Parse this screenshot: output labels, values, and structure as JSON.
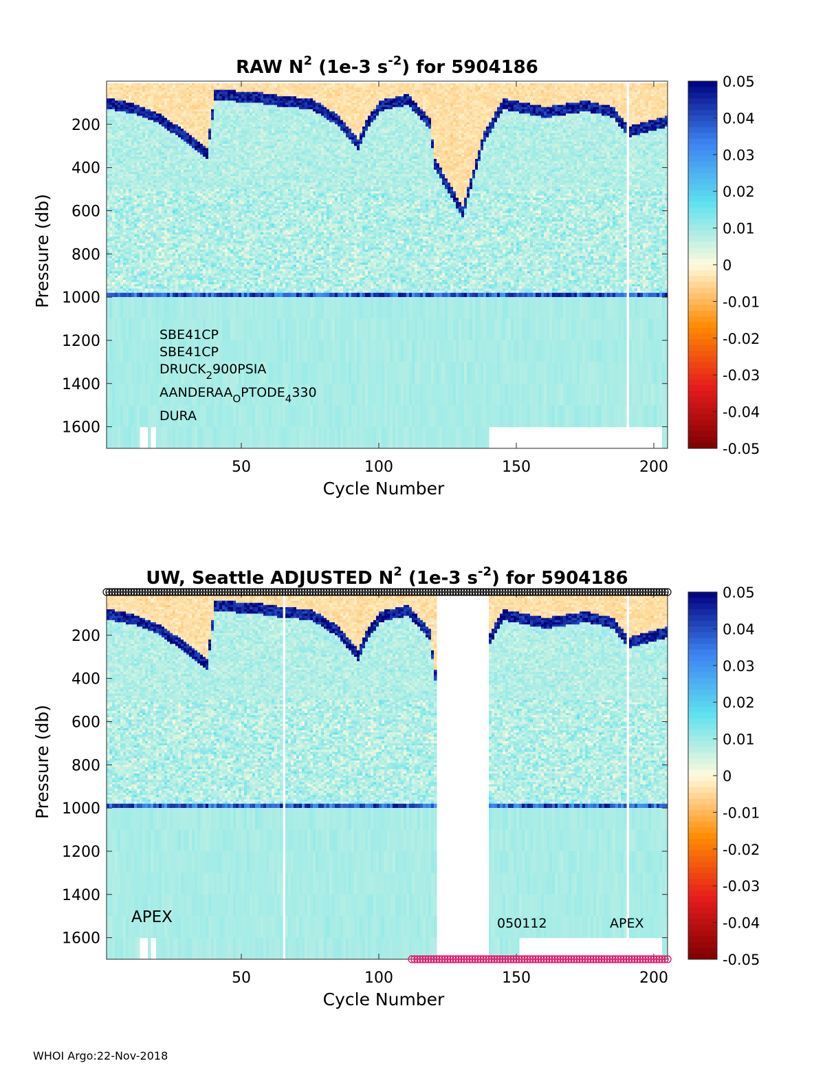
{
  "chart_data": [
    {
      "type": "heatmap",
      "title": {
        "main": "RAW N",
        "sup": "2",
        "mid": " (1e-3 s",
        "sup2": "-2",
        "tail": ") for 5904186"
      },
      "xlabel": "Cycle Number",
      "ylabel": "Pressure (db)",
      "xlim": [
        1,
        205
      ],
      "ylim": [
        1700,
        0
      ],
      "xticks": [
        50,
        100,
        150,
        200
      ],
      "yticks": [
        200,
        400,
        600,
        800,
        1000,
        1200,
        1400,
        1600
      ],
      "colorbar": {
        "min": -0.05,
        "max": 0.05,
        "ticks": [
          "0.05",
          "0.04",
          "0.03",
          "0.02",
          "0.01",
          "0",
          "-0.01",
          "-0.02",
          "-0.03",
          "-0.04",
          "-0.05"
        ]
      },
      "colormap": [
        "#7f0000",
        "#e61c1c",
        "#ff8c00",
        "#fffadc",
        "#5fe1ef",
        "#3c82f0",
        "#00007d"
      ],
      "mixed_layer_depth": [
        [
          1,
          100
        ],
        [
          10,
          120
        ],
        [
          20,
          170
        ],
        [
          30,
          260
        ],
        [
          37,
          330
        ],
        [
          40,
          60
        ],
        [
          55,
          70
        ],
        [
          65,
          90
        ],
        [
          75,
          100
        ],
        [
          85,
          180
        ],
        [
          92,
          290
        ],
        [
          95,
          200
        ],
        [
          100,
          110
        ],
        [
          110,
          80
        ],
        [
          118,
          190
        ],
        [
          120,
          380
        ],
        [
          130,
          600
        ],
        [
          138,
          250
        ],
        [
          145,
          100
        ],
        [
          160,
          140
        ],
        [
          175,
          110
        ],
        [
          185,
          140
        ],
        [
          190,
          230
        ],
        [
          205,
          180
        ]
      ],
      "missing_columns": [
        190
      ],
      "bottom_gaps": [
        [
          13,
          15
        ],
        [
          17,
          18
        ],
        [
          140,
          151
        ],
        [
          151,
          202
        ]
      ],
      "annotations": [
        {
          "text": "SBE41CP"
        },
        {
          "text": "SBE41CP"
        },
        {
          "parts": [
            "DRUCK",
            "2",
            "900PSIA"
          ]
        },
        {
          "parts": [
            "AANDERAA",
            "O",
            "PTODE",
            "4",
            "330"
          ]
        },
        {
          "text": "DURA"
        }
      ]
    },
    {
      "type": "heatmap",
      "title": {
        "main": "UW, Seattle  ADJUSTED N",
        "sup": "2",
        "mid": " (1e-3 s",
        "sup2": "-2",
        "tail": ") for 5904186"
      },
      "xlabel": "Cycle Number",
      "ylabel": "Pressure (db)",
      "xlim": [
        1,
        205
      ],
      "ylim": [
        1700,
        0
      ],
      "xticks": [
        50,
        100,
        150,
        200
      ],
      "yticks": [
        200,
        400,
        600,
        800,
        1000,
        1200,
        1400,
        1600
      ],
      "colorbar": {
        "min": -0.05,
        "max": 0.05,
        "ticks": [
          "0.05",
          "0.04",
          "0.03",
          "0.02",
          "0.01",
          "0",
          "-0.01",
          "-0.02",
          "-0.03",
          "-0.04",
          "-0.05"
        ]
      },
      "missing_columns": [
        65,
        190
      ],
      "missing_range": [
        121,
        139
      ],
      "bottom_gaps": [
        [
          13,
          15
        ],
        [
          17,
          18
        ],
        [
          151,
          202
        ]
      ],
      "qc_markers_top": {
        "range": [
          1,
          205
        ],
        "color": "#000000"
      },
      "qc_markers_bottom": {
        "range": [
          112,
          205
        ],
        "color": "#e6196e"
      },
      "annotations": [
        {
          "text": "APEX"
        },
        {
          "text": "050112"
        },
        {
          "text": "APEX"
        }
      ]
    }
  ],
  "footer": "WHOI Argo:22-Nov-2018"
}
